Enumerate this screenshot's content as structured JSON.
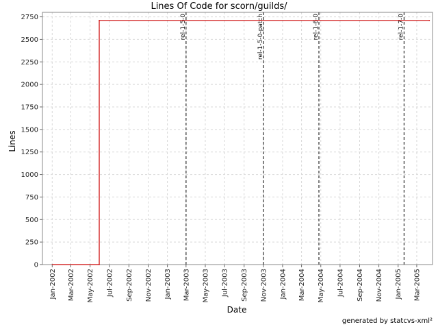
{
  "chart_data": {
    "type": "line",
    "title": "Lines Of Code for scorn/guilds/",
    "xlabel": "Date",
    "ylabel": "Lines",
    "ylim": [
      0,
      2800
    ],
    "xlim": [
      "2001-12-01",
      "2005-04-20"
    ],
    "yticks": [
      0,
      250,
      500,
      750,
      1000,
      1250,
      1500,
      1750,
      2000,
      2250,
      2500,
      2750
    ],
    "xticks": [
      {
        "label": "Jan-2002",
        "date": "2002-01-01"
      },
      {
        "label": "Mar-2002",
        "date": "2002-03-01"
      },
      {
        "label": "May-2002",
        "date": "2002-05-01"
      },
      {
        "label": "Jul-2002",
        "date": "2002-07-01"
      },
      {
        "label": "Sep-2002",
        "date": "2002-09-01"
      },
      {
        "label": "Nov-2002",
        "date": "2002-11-01"
      },
      {
        "label": "Jan-2003",
        "date": "2003-01-01"
      },
      {
        "label": "Mar-2003",
        "date": "2003-03-01"
      },
      {
        "label": "May-2003",
        "date": "2003-05-01"
      },
      {
        "label": "Jul-2003",
        "date": "2003-07-01"
      },
      {
        "label": "Sep-2003",
        "date": "2003-09-01"
      },
      {
        "label": "Nov-2003",
        "date": "2003-11-01"
      },
      {
        "label": "Jan-2004",
        "date": "2004-01-01"
      },
      {
        "label": "Mar-2004",
        "date": "2004-03-01"
      },
      {
        "label": "May-2004",
        "date": "2004-05-01"
      },
      {
        "label": "Jul-2004",
        "date": "2004-07-01"
      },
      {
        "label": "Sep-2004",
        "date": "2004-09-01"
      },
      {
        "label": "Nov-2004",
        "date": "2004-11-01"
      },
      {
        "label": "Jan-2005",
        "date": "2005-01-01"
      },
      {
        "label": "Mar-2005",
        "date": "2005-03-01"
      }
    ],
    "series": [
      {
        "color": "#cc0000",
        "step": true,
        "points": [
          {
            "x": "2002-01-01",
            "y": 0
          },
          {
            "x": "2002-05-30",
            "y": 0
          },
          {
            "x": "2002-05-30",
            "y": 2710
          },
          {
            "x": "2005-04-10",
            "y": 2710
          }
        ]
      }
    ],
    "markers": [
      {
        "label": "rel-1-5-0",
        "date": "2003-03-01"
      },
      {
        "label": "rel-1-5-0-patch",
        "date": "2003-11-01"
      },
      {
        "label": "rel-1-6-0",
        "date": "2004-04-25"
      },
      {
        "label": "rel-1-7-0",
        "date": "2005-01-20"
      }
    ],
    "grid": true
  },
  "footer": "generated by statcvs-xml²"
}
